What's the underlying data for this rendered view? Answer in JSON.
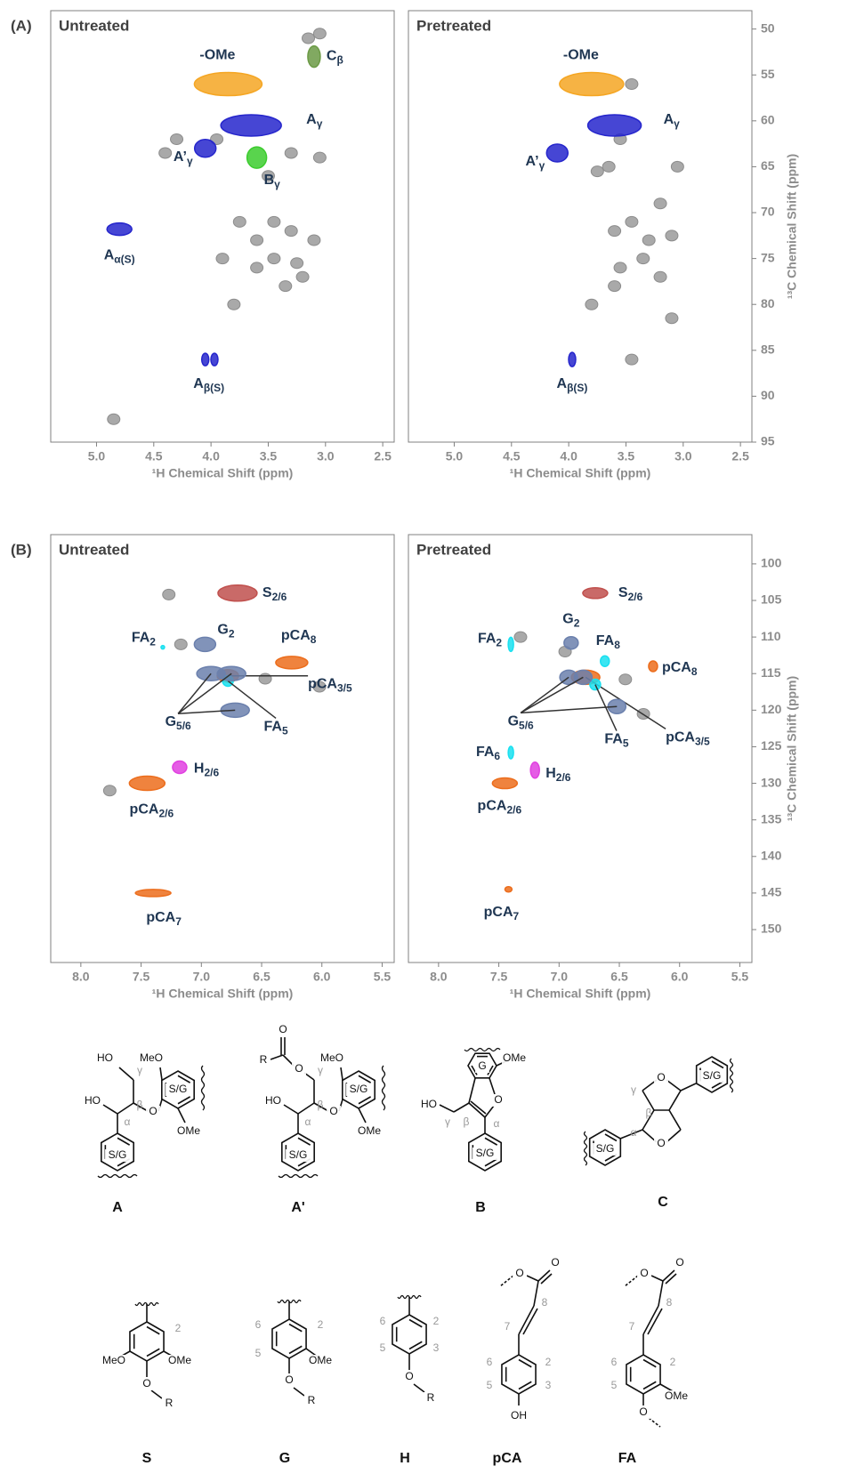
{
  "chart_data": [
    {
      "type": "scatter",
      "panel": "(A)",
      "title": "Untreated",
      "xlabel": "¹H Chemical Shift (ppm)",
      "xlim": [
        5.4,
        2.4
      ],
      "xticks": [
        {
          "value": 5,
          "label": "5.0"
        },
        4.5,
        {
          "value": 4,
          "label": "4.0"
        },
        3.5,
        {
          "value": 3,
          "label": "3.0"
        },
        2.5
      ],
      "ylim": [
        48,
        95
      ],
      "peaks": [
        {
          "name": "-OMe",
          "color": "#f5a623",
          "x": [
            3.85
          ],
          "y": [
            56
          ]
        },
        {
          "name": "C",
          "sub": "β",
          "color": "#6b9a45",
          "x": [
            3.1
          ],
          "y": [
            53
          ]
        },
        {
          "name": "A",
          "sub": "γ",
          "color": "#2626cc",
          "x": [
            3.65
          ],
          "y": [
            60.5
          ]
        },
        {
          "name": "A’",
          "sub": "γ",
          "color": "#2626cc",
          "x": [
            4.05
          ],
          "y": [
            63
          ]
        },
        {
          "name": "B",
          "sub": "γ",
          "color": "#3ccc2e",
          "x": [
            3.6
          ],
          "y": [
            64
          ]
        },
        {
          "name": "A",
          "sub": "α(S)",
          "color": "#2626cc",
          "x": [
            4.8
          ],
          "y": [
            71.8
          ]
        },
        {
          "name": "A",
          "sub": "β(S)",
          "color": "#2626cc",
          "x": [
            4.05,
            3.97
          ],
          "y": [
            86,
            86
          ]
        }
      ],
      "background": {
        "color": "#8c8c8c",
        "x": [
          3.3,
          3.05,
          3.5,
          3.45,
          3.3,
          3.1,
          3.6,
          3.45,
          3.25,
          3.75,
          3.6,
          3.35,
          3.8,
          3.95,
          4.3,
          4.4,
          3.15,
          3.05,
          4.85,
          3.9,
          3.2
        ],
        "y": [
          63.5,
          64,
          66,
          71,
          72,
          73,
          73,
          75,
          75.5,
          71,
          76,
          78,
          80,
          62,
          62,
          63.5,
          51,
          50.5,
          92.5,
          75,
          77
        ]
      }
    },
    {
      "type": "scatter",
      "title": "Pretreated",
      "xlabel": "¹H Chemical Shift (ppm)",
      "ylabel": "¹³C Chemical Shift (ppm)",
      "xlim": [
        5.4,
        2.4
      ],
      "xticks": [
        {
          "value": 5,
          "label": "5.0"
        },
        4.5,
        {
          "value": 4,
          "label": "4.0"
        },
        3.5,
        {
          "value": 3,
          "label": "3.0"
        },
        2.5
      ],
      "ylim": [
        48,
        95
      ],
      "yticks": [
        50,
        55,
        60,
        65,
        70,
        75,
        80,
        85,
        90,
        95
      ],
      "peaks": [
        {
          "name": "-OMe",
          "color": "#f5a623",
          "x": [
            3.8
          ],
          "y": [
            56
          ]
        },
        {
          "name": "A",
          "sub": "γ",
          "color": "#2626cc",
          "x": [
            3.6
          ],
          "y": [
            60.5
          ]
        },
        {
          "name": "A’",
          "sub": "γ",
          "color": "#2626cc",
          "x": [
            4.1
          ],
          "y": [
            63.5
          ]
        },
        {
          "name": "A",
          "sub": "β(S)",
          "color": "#2626cc",
          "x": [
            3.97
          ],
          "y": [
            86
          ]
        }
      ],
      "background": {
        "color": "#8c8c8c",
        "x": [
          3.45,
          3.45,
          3.3,
          3.1,
          3.6,
          3.35,
          3.55,
          3.2,
          3.8,
          3.6,
          3.05,
          3.2,
          3.45,
          3.1,
          3.75,
          3.65,
          3.55
        ],
        "y": [
          56,
          71,
          73,
          72.5,
          72,
          75,
          76,
          77,
          80,
          78,
          65,
          69,
          86,
          81.5,
          65.5,
          65,
          62
        ]
      }
    },
    {
      "type": "scatter",
      "panel": "(B)",
      "title": "Untreated",
      "xlabel": "¹H Chemical Shift (ppm)",
      "xlim": [
        8.25,
        5.4
      ],
      "xticks": [
        {
          "value": 8,
          "label": "8.0"
        },
        7.5,
        {
          "value": 7,
          "label": "7.0"
        },
        6.5,
        {
          "value": 6,
          "label": "6.0"
        },
        5.5
      ],
      "ylim": [
        96,
        154.5
      ],
      "peaks": [
        {
          "name": "S",
          "sub": "2/6",
          "color": "#c0504d",
          "x": [
            6.7
          ],
          "y": [
            104
          ]
        },
        {
          "name": "G",
          "sub": "2",
          "color": "#6b80ad",
          "x": [
            6.97
          ],
          "y": [
            111
          ]
        },
        {
          "name": "FA",
          "sub": "2",
          "color": "#19e0f0",
          "x": [
            7.32
          ],
          "y": [
            111.4
          ]
        },
        {
          "name": "pCA",
          "sub": "8",
          "color": "#ec6d1c",
          "x": [
            6.25
          ],
          "y": [
            113.5
          ]
        },
        {
          "name": "pCA",
          "sub": "3/5",
          "color": "#ec6d1c",
          "x": [
            6.78
          ],
          "y": [
            115.3
          ]
        },
        {
          "name": "FA",
          "sub": "5",
          "color": "#19e0f0",
          "x": [
            6.78
          ],
          "y": [
            116
          ]
        },
        {
          "name": "G",
          "sub": "5/6",
          "color": "#6b80ad",
          "x": [
            6.92,
            6.75,
            6.72
          ],
          "y": [
            115,
            115,
            120
          ]
        },
        {
          "name": "H",
          "sub": "2/6",
          "color": "#e040e0",
          "x": [
            7.18
          ],
          "y": [
            127.8
          ]
        },
        {
          "name": "pCA",
          "sub": "2/6",
          "color": "#ec6d1c",
          "x": [
            7.45
          ],
          "y": [
            130
          ]
        },
        {
          "name": "pCA",
          "sub": "7",
          "color": "#ec6d1c",
          "x": [
            7.4
          ],
          "y": [
            145
          ]
        }
      ],
      "background": {
        "color": "#8c8c8c",
        "x": [
          7.27,
          7.17,
          6.47,
          6.02,
          7.76
        ],
        "y": [
          104.2,
          111,
          115.7,
          116.8,
          131
        ]
      }
    },
    {
      "type": "scatter",
      "title": "Pretreated",
      "xlabel": "¹H Chemical Shift (ppm)",
      "ylabel": "¹³C Chemical Shift (ppm)",
      "xlim": [
        8.25,
        5.4
      ],
      "xticks": [
        {
          "value": 8,
          "label": "8.0"
        },
        7.5,
        {
          "value": 7,
          "label": "7.0"
        },
        6.5,
        {
          "value": 6,
          "label": "6.0"
        },
        5.5
      ],
      "ylim": [
        96,
        154.5
      ],
      "yticks": [
        100,
        105,
        110,
        115,
        120,
        125,
        130,
        135,
        140,
        145,
        150
      ],
      "peaks": [
        {
          "name": "S",
          "sub": "2/6",
          "color": "#c0504d",
          "x": [
            6.7
          ],
          "y": [
            104
          ]
        },
        {
          "name": "G",
          "sub": "2",
          "color": "#6b80ad",
          "x": [
            6.9
          ],
          "y": [
            110.8
          ]
        },
        {
          "name": "FA",
          "sub": "2",
          "color": "#19e0f0",
          "x": [
            7.4
          ],
          "y": [
            111
          ]
        },
        {
          "name": "FA",
          "sub": "8",
          "color": "#19e0f0",
          "x": [
            6.62
          ],
          "y": [
            113.3
          ]
        },
        {
          "name": "pCA",
          "sub": "8",
          "color": "#ec6d1c",
          "x": [
            6.22
          ],
          "y": [
            114
          ]
        },
        {
          "name": "pCA",
          "sub": "3/5",
          "color": "#ec6d1c",
          "x": [
            6.78
          ],
          "y": [
            115.5
          ]
        },
        {
          "name": "FA",
          "sub": "5",
          "color": "#19e0f0",
          "x": [
            6.7
          ],
          "y": [
            116.5
          ]
        },
        {
          "name": "G",
          "sub": "5/6",
          "color": "#6b80ad",
          "x": [
            6.92,
            6.8,
            6.52
          ],
          "y": [
            115.5,
            115.5,
            119.5
          ]
        },
        {
          "name": "FA",
          "sub": "6",
          "color": "#19e0f0",
          "x": [
            7.4
          ],
          "y": [
            125.8
          ]
        },
        {
          "name": "H",
          "sub": "2/6",
          "color": "#e040e0",
          "x": [
            7.2
          ],
          "y": [
            128.2
          ]
        },
        {
          "name": "pCA",
          "sub": "2/6",
          "color": "#ec6d1c",
          "x": [
            7.45
          ],
          "y": [
            130
          ]
        },
        {
          "name": "pCA",
          "sub": "7",
          "color": "#ec6d1c",
          "x": [
            7.42
          ],
          "y": [
            144.5
          ]
        }
      ],
      "background": {
        "color": "#8c8c8c",
        "x": [
          7.32,
          6.95,
          6.3,
          6.45
        ],
        "y": [
          110,
          112,
          120.5,
          115.8
        ]
      }
    }
  ],
  "structures": [
    {
      "label": "A",
      "texts": [
        "HO",
        "MeO",
        "γ",
        "β",
        "HO",
        "α",
        "O",
        "S/G",
        "OMe",
        "S/G"
      ]
    },
    {
      "label": "A'",
      "texts": [
        "O",
        "R",
        "O",
        "MeO",
        "γ",
        "β",
        "HO",
        "α",
        "O",
        "S/G",
        "OMe",
        "S/G"
      ]
    },
    {
      "label": "B",
      "texts": [
        "G",
        "OMe",
        "O",
        "HO",
        "γ",
        "β",
        "α",
        "S/G"
      ]
    },
    {
      "label": "C",
      "texts": [
        "O",
        "γ",
        "β",
        "α",
        "O",
        "S/G",
        "S/G"
      ]
    },
    {
      "label": "S",
      "texts": [
        "2",
        "MeO",
        "OMe",
        "O",
        "R"
      ]
    },
    {
      "label": "G",
      "texts": [
        "6",
        "2",
        "5",
        "OMe",
        "O",
        "R"
      ]
    },
    {
      "label": "H",
      "texts": [
        "6",
        "2",
        "5",
        "3",
        "O",
        "R"
      ]
    },
    {
      "label": "pCA",
      "texts": [
        "O",
        "O",
        "8",
        "7",
        "6",
        "2",
        "5",
        "3",
        "OH"
      ]
    },
    {
      "label": "FA",
      "texts": [
        "O",
        "O",
        "8",
        "7",
        "6",
        "2",
        "5",
        "OMe",
        "O"
      ]
    }
  ]
}
